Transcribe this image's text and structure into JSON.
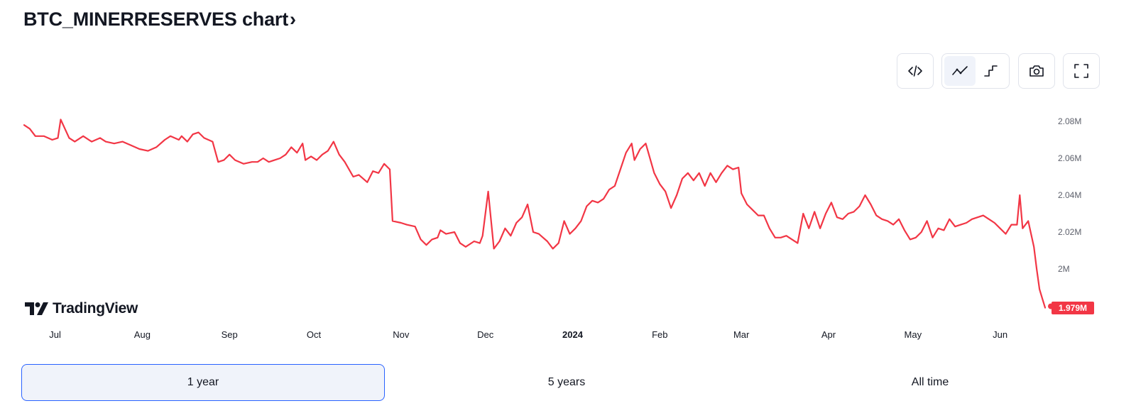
{
  "header": {
    "title": "BTC_MINERRESERVES chart",
    "title_chevron": "›"
  },
  "toolbar": {
    "embed_icon": "code-icon",
    "line_icon": "line-chart-icon",
    "step_icon": "step-line-icon",
    "snapshot_icon": "camera-icon",
    "fullscreen_icon": "fullscreen-icon",
    "active_style": "line"
  },
  "brand": {
    "logo_text": "TradingView"
  },
  "periods": {
    "items": [
      "1 year",
      "5 years",
      "All time"
    ],
    "selected": "1 year"
  },
  "colors": {
    "series": "#f23645",
    "label_bg": "#f23645",
    "accent": "#2962ff",
    "axis_text": "#5d606b"
  },
  "chart_data": {
    "type": "line",
    "title": "BTC_MINERRESERVES",
    "ylim": [
      1.979,
      2.085
    ],
    "y_unit": "M",
    "y_ticks": [
      "2M",
      "2.02M",
      "2.04M",
      "2.06M",
      "2.08M"
    ],
    "y_tick_values": [
      2.0,
      2.02,
      2.04,
      2.06,
      2.08
    ],
    "x_ticks": [
      "Jul",
      "Aug",
      "Sep",
      "Oct",
      "Nov",
      "Dec",
      "2024",
      "Feb",
      "Mar",
      "Apr",
      "May",
      "Jun"
    ],
    "x_tick_dates": [
      "2023-07-01",
      "2023-08-01",
      "2023-09-01",
      "2023-10-01",
      "2023-11-01",
      "2023-12-01",
      "2024-01-01",
      "2024-02-01",
      "2024-03-01",
      "2024-04-01",
      "2024-05-01",
      "2024-06-01"
    ],
    "x_range": [
      "2023-06-20",
      "2024-06-17"
    ],
    "last_value_label": "1.979M",
    "grid": false,
    "series": [
      {
        "points": [
          [
            "2023-06-20",
            2.078
          ],
          [
            "2023-06-22",
            2.076
          ],
          [
            "2023-06-24",
            2.072
          ],
          [
            "2023-06-27",
            2.072
          ],
          [
            "2023-06-30",
            2.07
          ],
          [
            "2023-07-02",
            2.071
          ],
          [
            "2023-07-03",
            2.081
          ],
          [
            "2023-07-06",
            2.071
          ],
          [
            "2023-07-08",
            2.069
          ],
          [
            "2023-07-11",
            2.072
          ],
          [
            "2023-07-14",
            2.069
          ],
          [
            "2023-07-17",
            2.071
          ],
          [
            "2023-07-19",
            2.069
          ],
          [
            "2023-07-22",
            2.068
          ],
          [
            "2023-07-25",
            2.069
          ],
          [
            "2023-07-28",
            2.067
          ],
          [
            "2023-07-31",
            2.065
          ],
          [
            "2023-08-03",
            2.064
          ],
          [
            "2023-08-06",
            2.066
          ],
          [
            "2023-08-09",
            2.07
          ],
          [
            "2023-08-11",
            2.072
          ],
          [
            "2023-08-14",
            2.07
          ],
          [
            "2023-08-15",
            2.072
          ],
          [
            "2023-08-17",
            2.069
          ],
          [
            "2023-08-19",
            2.073
          ],
          [
            "2023-08-21",
            2.074
          ],
          [
            "2023-08-23",
            2.071
          ],
          [
            "2023-08-26",
            2.069
          ],
          [
            "2023-08-28",
            2.058
          ],
          [
            "2023-08-30",
            2.059
          ],
          [
            "2023-09-01",
            2.062
          ],
          [
            "2023-09-03",
            2.059
          ],
          [
            "2023-09-06",
            2.057
          ],
          [
            "2023-09-09",
            2.058
          ],
          [
            "2023-09-11",
            2.058
          ],
          [
            "2023-09-13",
            2.06
          ],
          [
            "2023-09-15",
            2.058
          ],
          [
            "2023-09-17",
            2.059
          ],
          [
            "2023-09-19",
            2.06
          ],
          [
            "2023-09-21",
            2.062
          ],
          [
            "2023-09-23",
            2.066
          ],
          [
            "2023-09-25",
            2.063
          ],
          [
            "2023-09-27",
            2.068
          ],
          [
            "2023-09-28",
            2.059
          ],
          [
            "2023-09-30",
            2.061
          ],
          [
            "2023-10-02",
            2.059
          ],
          [
            "2023-10-04",
            2.062
          ],
          [
            "2023-10-06",
            2.064
          ],
          [
            "2023-10-08",
            2.069
          ],
          [
            "2023-10-10",
            2.062
          ],
          [
            "2023-10-12",
            2.058
          ],
          [
            "2023-10-15",
            2.05
          ],
          [
            "2023-10-17",
            2.051
          ],
          [
            "2023-10-20",
            2.047
          ],
          [
            "2023-10-22",
            2.053
          ],
          [
            "2023-10-24",
            2.052
          ],
          [
            "2023-10-26",
            2.057
          ],
          [
            "2023-10-28",
            2.054
          ],
          [
            "2023-10-29",
            2.026
          ],
          [
            "2023-11-01",
            2.025
          ],
          [
            "2023-11-03",
            2.024
          ],
          [
            "2023-11-06",
            2.023
          ],
          [
            "2023-11-08",
            2.016
          ],
          [
            "2023-11-10",
            2.013
          ],
          [
            "2023-11-12",
            2.016
          ],
          [
            "2023-11-14",
            2.017
          ],
          [
            "2023-11-15",
            2.021
          ],
          [
            "2023-11-17",
            2.019
          ],
          [
            "2023-11-20",
            2.02
          ],
          [
            "2023-11-22",
            2.014
          ],
          [
            "2023-11-24",
            2.012
          ],
          [
            "2023-11-27",
            2.015
          ],
          [
            "2023-11-29",
            2.014
          ],
          [
            "2023-11-30",
            2.018
          ],
          [
            "2023-12-02",
            2.042
          ],
          [
            "2023-12-04",
            2.011
          ],
          [
            "2023-12-06",
            2.015
          ],
          [
            "2023-12-08",
            2.022
          ],
          [
            "2023-12-10",
            2.018
          ],
          [
            "2023-12-12",
            2.025
          ],
          [
            "2023-12-14",
            2.028
          ],
          [
            "2023-12-16",
            2.035
          ],
          [
            "2023-12-18",
            2.02
          ],
          [
            "2023-12-20",
            2.019
          ],
          [
            "2023-12-23",
            2.015
          ],
          [
            "2023-12-25",
            2.011
          ],
          [
            "2023-12-27",
            2.014
          ],
          [
            "2023-12-29",
            2.026
          ],
          [
            "2023-12-31",
            2.019
          ],
          [
            "2024-01-02",
            2.022
          ],
          [
            "2024-01-04",
            2.026
          ],
          [
            "2024-01-06",
            2.034
          ],
          [
            "2024-01-08",
            2.037
          ],
          [
            "2024-01-10",
            2.036
          ],
          [
            "2024-01-12",
            2.038
          ],
          [
            "2024-01-14",
            2.043
          ],
          [
            "2024-01-16",
            2.045
          ],
          [
            "2024-01-18",
            2.054
          ],
          [
            "2024-01-20",
            2.063
          ],
          [
            "2024-01-22",
            2.068
          ],
          [
            "2024-01-23",
            2.059
          ],
          [
            "2024-01-25",
            2.065
          ],
          [
            "2024-01-27",
            2.068
          ],
          [
            "2024-01-30",
            2.052
          ],
          [
            "2024-02-01",
            2.046
          ],
          [
            "2024-02-03",
            2.042
          ],
          [
            "2024-02-05",
            2.033
          ],
          [
            "2024-02-07",
            2.04
          ],
          [
            "2024-02-09",
            2.049
          ],
          [
            "2024-02-11",
            2.052
          ],
          [
            "2024-02-13",
            2.048
          ],
          [
            "2024-02-15",
            2.052
          ],
          [
            "2024-02-17",
            2.045
          ],
          [
            "2024-02-19",
            2.052
          ],
          [
            "2024-02-21",
            2.047
          ],
          [
            "2024-02-23",
            2.052
          ],
          [
            "2024-02-25",
            2.056
          ],
          [
            "2024-02-27",
            2.054
          ],
          [
            "2024-02-29",
            2.055
          ],
          [
            "2024-03-01",
            2.041
          ],
          [
            "2024-03-03",
            2.035
          ],
          [
            "2024-03-05",
            2.032
          ],
          [
            "2024-03-07",
            2.029
          ],
          [
            "2024-03-09",
            2.029
          ],
          [
            "2024-03-11",
            2.022
          ],
          [
            "2024-03-13",
            2.017
          ],
          [
            "2024-03-15",
            2.017
          ],
          [
            "2024-03-17",
            2.018
          ],
          [
            "2024-03-19",
            2.016
          ],
          [
            "2024-03-21",
            2.014
          ],
          [
            "2024-03-23",
            2.03
          ],
          [
            "2024-03-25",
            2.022
          ],
          [
            "2024-03-27",
            2.031
          ],
          [
            "2024-03-29",
            2.022
          ],
          [
            "2024-03-31",
            2.03
          ],
          [
            "2024-04-02",
            2.036
          ],
          [
            "2024-04-04",
            2.028
          ],
          [
            "2024-04-06",
            2.027
          ],
          [
            "2024-04-08",
            2.03
          ],
          [
            "2024-04-10",
            2.031
          ],
          [
            "2024-04-12",
            2.034
          ],
          [
            "2024-04-14",
            2.04
          ],
          [
            "2024-04-16",
            2.035
          ],
          [
            "2024-04-18",
            2.029
          ],
          [
            "2024-04-20",
            2.027
          ],
          [
            "2024-04-22",
            2.026
          ],
          [
            "2024-04-24",
            2.024
          ],
          [
            "2024-04-26",
            2.027
          ],
          [
            "2024-04-28",
            2.021
          ],
          [
            "2024-04-30",
            2.016
          ],
          [
            "2024-05-02",
            2.017
          ],
          [
            "2024-05-04",
            2.02
          ],
          [
            "2024-05-06",
            2.026
          ],
          [
            "2024-05-08",
            2.017
          ],
          [
            "2024-05-10",
            2.022
          ],
          [
            "2024-05-12",
            2.021
          ],
          [
            "2024-05-14",
            2.027
          ],
          [
            "2024-05-16",
            2.023
          ],
          [
            "2024-05-18",
            2.024
          ],
          [
            "2024-05-20",
            2.025
          ],
          [
            "2024-05-22",
            2.027
          ],
          [
            "2024-05-24",
            2.028
          ],
          [
            "2024-05-26",
            2.029
          ],
          [
            "2024-05-28",
            2.027
          ],
          [
            "2024-05-30",
            2.025
          ],
          [
            "2024-06-01",
            2.022
          ],
          [
            "2024-06-03",
            2.019
          ],
          [
            "2024-06-05",
            2.024
          ],
          [
            "2024-06-07",
            2.024
          ],
          [
            "2024-06-08",
            2.04
          ],
          [
            "2024-06-09",
            2.022
          ],
          [
            "2024-06-11",
            2.026
          ],
          [
            "2024-06-12",
            2.019
          ],
          [
            "2024-06-13",
            2.012
          ],
          [
            "2024-06-14",
            2.0
          ],
          [
            "2024-06-15",
            1.989
          ],
          [
            "2024-06-16",
            1.984
          ],
          [
            "2024-06-17",
            1.979
          ]
        ]
      }
    ]
  }
}
